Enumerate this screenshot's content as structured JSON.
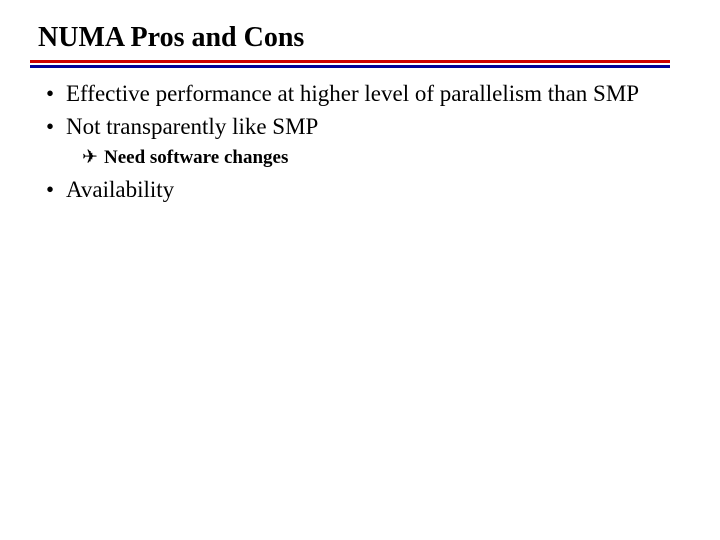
{
  "title": "NUMA Pros and Cons",
  "colors": {
    "rule_red": "#cc0000",
    "rule_blue": "#000099",
    "text": "#000000",
    "background": "#ffffff"
  },
  "typography": {
    "title_fontsize": 28,
    "l1_fontsize": 23,
    "l2_fontsize": 19,
    "font_family": "Times New Roman"
  },
  "bullets": {
    "item0": {
      "marker": "•",
      "text": "Effective performance at higher level of parallelism than SMP"
    },
    "item1": {
      "marker": "•",
      "text": "Not transparently like SMP",
      "sub0": {
        "marker": "✈",
        "text": "Need software changes"
      }
    },
    "item2": {
      "marker": "•",
      "text": "Availability"
    }
  }
}
